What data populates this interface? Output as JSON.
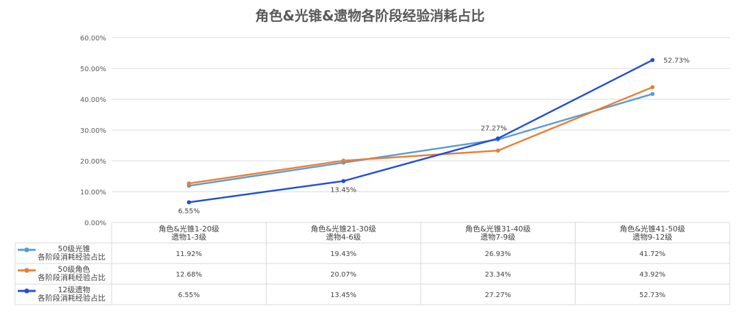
{
  "chart_data": {
    "type": "line",
    "title": "角色&光锥&遗物各阶段经验消耗占比",
    "y_ticks": [
      "60.00%",
      "50.00%",
      "40.00%",
      "30.00%",
      "20.00%",
      "10.00%",
      "0.00%"
    ],
    "ylim": [
      0,
      60
    ],
    "grid": true,
    "categories": [
      [
        "角色&光锥1-20级",
        "遗物1-3级"
      ],
      [
        "角色&光锥21-30级",
        "遗物4-6级"
      ],
      [
        "角色&光锥31-40级",
        "遗物7-9级"
      ],
      [
        "角色&光锥41-50级",
        "遗物9-12级"
      ]
    ],
    "series": [
      {
        "name": [
          "50级光锥",
          "各阶段消耗经验占比"
        ],
        "color": "#5B9BD5",
        "values": [
          11.92,
          19.43,
          26.93,
          41.72
        ],
        "table_values": [
          "11.92%",
          "19.43%",
          "26.93%",
          "41.72%"
        ]
      },
      {
        "name": [
          "50级角色",
          "各阶段消耗经验占比"
        ],
        "color": "#ED7D31",
        "values": [
          12.68,
          20.07,
          23.34,
          43.92
        ],
        "table_values": [
          "12.68%",
          "20.07%",
          "23.34%",
          "43.92%"
        ]
      },
      {
        "name": [
          "12级遗物",
          "各阶段消耗经验占比"
        ],
        "color": "#1F4FDB",
        "values": [
          6.55,
          13.45,
          27.27,
          52.73
        ],
        "table_values": [
          "6.55%",
          "13.45%",
          "27.27%",
          "52.73%"
        ],
        "data_labels": [
          "6.55%",
          "13.45%",
          "27.27%",
          "52.73%"
        ]
      }
    ],
    "legend": "data-table"
  }
}
